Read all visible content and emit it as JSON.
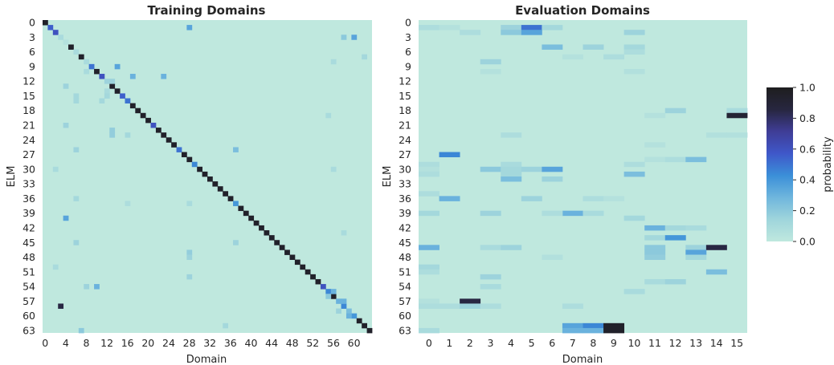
{
  "colorbar": {
    "label": "probability",
    "range": [
      0.0,
      1.0
    ],
    "tick_labels": [
      "0.0",
      "0.2",
      "0.4",
      "0.6",
      "0.8",
      "1.0"
    ],
    "colors": [
      "#bfe8de",
      "#9fd5dc",
      "#6fb6dd",
      "#3b8fd8",
      "#3f57c9",
      "#3f3d96",
      "#27263f",
      "#1e1e1e"
    ]
  },
  "chart_data": [
    {
      "type": "heatmap",
      "title": "Training Domains",
      "xlabel": "Domain",
      "ylabel": "ELM",
      "x_tick_labels": [
        "0",
        "4",
        "8",
        "12",
        "16",
        "20",
        "24",
        "28",
        "32",
        "36",
        "40",
        "44",
        "48",
        "52",
        "56",
        "60"
      ],
      "y_tick_labels": [
        "0",
        "3",
        "6",
        "9",
        "12",
        "15",
        "18",
        "21",
        "24",
        "27",
        "30",
        "33",
        "36",
        "39",
        "42",
        "45",
        "48",
        "51",
        "54",
        "57",
        "60",
        "63"
      ],
      "n_rows": 64,
      "n_cols": 64,
      "diagonal_value": 0.95,
      "diagonal_exceptions": [
        {
          "row": 1,
          "value": 0.55
        },
        {
          "row": 2,
          "value": 0.6
        },
        {
          "row": 9,
          "value": 0.5
        },
        {
          "row": 11,
          "value": 0.6
        },
        {
          "row": 15,
          "value": 0.55
        },
        {
          "row": 16,
          "value": 0.5
        },
        {
          "row": 21,
          "value": 0.6
        },
        {
          "row": 26,
          "value": 0.5
        },
        {
          "row": 29,
          "value": 0.45
        },
        {
          "row": 37,
          "value": 0.4
        },
        {
          "row": 54,
          "value": 0.6
        },
        {
          "row": 55,
          "value": 0.45
        },
        {
          "row": 58,
          "value": 0.45
        },
        {
          "row": 60,
          "value": 0.4
        }
      ],
      "off_diagonal": [
        {
          "row": 1,
          "col": 28,
          "value": 0.35
        },
        {
          "row": 3,
          "col": 3,
          "value": 0.1
        },
        {
          "row": 3,
          "col": 58,
          "value": 0.2
        },
        {
          "row": 3,
          "col": 60,
          "value": 0.35
        },
        {
          "row": 4,
          "col": 4,
          "value": 0.05
        },
        {
          "row": 6,
          "col": 6,
          "value": 0.1
        },
        {
          "row": 7,
          "col": 62,
          "value": 0.12
        },
        {
          "row": 8,
          "col": 8,
          "value": 0.1
        },
        {
          "row": 8,
          "col": 56,
          "value": 0.1
        },
        {
          "row": 9,
          "col": 14,
          "value": 0.35
        },
        {
          "row": 10,
          "col": 8,
          "value": 0.1
        },
        {
          "row": 11,
          "col": 17,
          "value": 0.3
        },
        {
          "row": 11,
          "col": 23,
          "value": 0.3
        },
        {
          "row": 12,
          "col": 12,
          "value": 0.15
        },
        {
          "row": 12,
          "col": 13,
          "value": 0.15
        },
        {
          "row": 13,
          "col": 4,
          "value": 0.15
        },
        {
          "row": 14,
          "col": 12,
          "value": 0.1
        },
        {
          "row": 15,
          "col": 6,
          "value": 0.12
        },
        {
          "row": 15,
          "col": 12,
          "value": 0.12
        },
        {
          "row": 16,
          "col": 6,
          "value": 0.12
        },
        {
          "row": 16,
          "col": 11,
          "value": 0.12
        },
        {
          "row": 19,
          "col": 55,
          "value": 0.1
        },
        {
          "row": 21,
          "col": 4,
          "value": 0.15
        },
        {
          "row": 22,
          "col": 13,
          "value": 0.18
        },
        {
          "row": 23,
          "col": 13,
          "value": 0.18
        },
        {
          "row": 23,
          "col": 16,
          "value": 0.12
        },
        {
          "row": 26,
          "col": 6,
          "value": 0.15
        },
        {
          "row": 26,
          "col": 37,
          "value": 0.25
        },
        {
          "row": 30,
          "col": 2,
          "value": 0.1
        },
        {
          "row": 30,
          "col": 56,
          "value": 0.1
        },
        {
          "row": 36,
          "col": 6,
          "value": 0.12
        },
        {
          "row": 37,
          "col": 16,
          "value": 0.08
        },
        {
          "row": 37,
          "col": 28,
          "value": 0.1
        },
        {
          "row": 40,
          "col": 4,
          "value": 0.35
        },
        {
          "row": 43,
          "col": 58,
          "value": 0.1
        },
        {
          "row": 45,
          "col": 6,
          "value": 0.15
        },
        {
          "row": 45,
          "col": 37,
          "value": 0.15
        },
        {
          "row": 47,
          "col": 28,
          "value": 0.18
        },
        {
          "row": 48,
          "col": 28,
          "value": 0.15
        },
        {
          "row": 50,
          "col": 2,
          "value": 0.1
        },
        {
          "row": 52,
          "col": 28,
          "value": 0.15
        },
        {
          "row": 54,
          "col": 8,
          "value": 0.15
        },
        {
          "row": 54,
          "col": 10,
          "value": 0.3
        },
        {
          "row": 55,
          "col": 56,
          "value": 0.3
        },
        {
          "row": 56,
          "col": 55,
          "value": 0.2
        },
        {
          "row": 57,
          "col": 57,
          "value": 0.3
        },
        {
          "row": 57,
          "col": 58,
          "value": 0.3
        },
        {
          "row": 58,
          "col": 3,
          "value": 0.85
        },
        {
          "row": 59,
          "col": 57,
          "value": 0.15
        },
        {
          "row": 59,
          "col": 59,
          "value": 0.25
        },
        {
          "row": 60,
          "col": 59,
          "value": 0.3
        },
        {
          "row": 62,
          "col": 35,
          "value": 0.12
        },
        {
          "row": 63,
          "col": 7,
          "value": 0.2
        }
      ]
    },
    {
      "type": "heatmap",
      "title": "Evaluation Domains",
      "xlabel": "Domain",
      "ylabel": "ELM",
      "x_tick_labels": [
        "0",
        "1",
        "2",
        "3",
        "4",
        "5",
        "6",
        "7",
        "8",
        "9",
        "10",
        "11",
        "12",
        "13",
        "14",
        "15"
      ],
      "y_tick_labels": [
        "0",
        "3",
        "6",
        "9",
        "12",
        "15",
        "18",
        "21",
        "24",
        "27",
        "30",
        "33",
        "36",
        "39",
        "42",
        "45",
        "48",
        "51",
        "54",
        "57",
        "60",
        "63"
      ],
      "n_rows": 64,
      "n_cols": 16,
      "cells": [
        {
          "row": 1,
          "col": 0,
          "value": 0.08
        },
        {
          "row": 1,
          "col": 1,
          "value": 0.05
        },
        {
          "row": 1,
          "col": 4,
          "value": 0.15
        },
        {
          "row": 1,
          "col": 5,
          "value": 0.5
        },
        {
          "row": 1,
          "col": 6,
          "value": 0.12
        },
        {
          "row": 2,
          "col": 4,
          "value": 0.2
        },
        {
          "row": 2,
          "col": 5,
          "value": 0.35
        },
        {
          "row": 2,
          "col": 10,
          "value": 0.15
        },
        {
          "row": 2,
          "col": 2,
          "value": 0.08
        },
        {
          "row": 5,
          "col": 6,
          "value": 0.25
        },
        {
          "row": 5,
          "col": 8,
          "value": 0.15
        },
        {
          "row": 5,
          "col": 10,
          "value": 0.12
        },
        {
          "row": 6,
          "col": 10,
          "value": 0.08
        },
        {
          "row": 7,
          "col": 7,
          "value": 0.05
        },
        {
          "row": 7,
          "col": 9,
          "value": 0.08
        },
        {
          "row": 8,
          "col": 3,
          "value": 0.15
        },
        {
          "row": 10,
          "col": 3,
          "value": 0.05
        },
        {
          "row": 10,
          "col": 10,
          "value": 0.06
        },
        {
          "row": 18,
          "col": 12,
          "value": 0.15
        },
        {
          "row": 18,
          "col": 15,
          "value": 0.1
        },
        {
          "row": 19,
          "col": 15,
          "value": 0.9
        },
        {
          "row": 19,
          "col": 11,
          "value": 0.05
        },
        {
          "row": 23,
          "col": 4,
          "value": 0.08
        },
        {
          "row": 23,
          "col": 14,
          "value": 0.06
        },
        {
          "row": 23,
          "col": 15,
          "value": 0.06
        },
        {
          "row": 25,
          "col": 11,
          "value": 0.05
        },
        {
          "row": 27,
          "col": 1,
          "value": 0.45
        },
        {
          "row": 28,
          "col": 11,
          "value": 0.05
        },
        {
          "row": 28,
          "col": 12,
          "value": 0.08
        },
        {
          "row": 28,
          "col": 13,
          "value": 0.25
        },
        {
          "row": 29,
          "col": 0,
          "value": 0.08
        },
        {
          "row": 29,
          "col": 4,
          "value": 0.1
        },
        {
          "row": 29,
          "col": 10,
          "value": 0.08
        },
        {
          "row": 30,
          "col": 0,
          "value": 0.05
        },
        {
          "row": 30,
          "col": 3,
          "value": 0.2
        },
        {
          "row": 30,
          "col": 4,
          "value": 0.12
        },
        {
          "row": 30,
          "col": 5,
          "value": 0.15
        },
        {
          "row": 30,
          "col": 6,
          "value": 0.35
        },
        {
          "row": 31,
          "col": 0,
          "value": 0.08
        },
        {
          "row": 31,
          "col": 4,
          "value": 0.12
        },
        {
          "row": 31,
          "col": 10,
          "value": 0.25
        },
        {
          "row": 32,
          "col": 4,
          "value": 0.25
        },
        {
          "row": 32,
          "col": 6,
          "value": 0.15
        },
        {
          "row": 35,
          "col": 0,
          "value": 0.08
        },
        {
          "row": 36,
          "col": 1,
          "value": 0.3
        },
        {
          "row": 36,
          "col": 5,
          "value": 0.15
        },
        {
          "row": 36,
          "col": 8,
          "value": 0.08
        },
        {
          "row": 36,
          "col": 9,
          "value": 0.05
        },
        {
          "row": 39,
          "col": 0,
          "value": 0.12
        },
        {
          "row": 39,
          "col": 3,
          "value": 0.15
        },
        {
          "row": 39,
          "col": 7,
          "value": 0.3
        },
        {
          "row": 39,
          "col": 6,
          "value": 0.08
        },
        {
          "row": 39,
          "col": 8,
          "value": 0.1
        },
        {
          "row": 40,
          "col": 10,
          "value": 0.12
        },
        {
          "row": 42,
          "col": 11,
          "value": 0.3
        },
        {
          "row": 42,
          "col": 12,
          "value": 0.12
        },
        {
          "row": 42,
          "col": 13,
          "value": 0.1
        },
        {
          "row": 44,
          "col": 11,
          "value": 0.12
        },
        {
          "row": 44,
          "col": 12,
          "value": 0.4
        },
        {
          "row": 46,
          "col": 0,
          "value": 0.3
        },
        {
          "row": 46,
          "col": 3,
          "value": 0.1
        },
        {
          "row": 46,
          "col": 4,
          "value": 0.15
        },
        {
          "row": 46,
          "col": 11,
          "value": 0.2
        },
        {
          "row": 46,
          "col": 13,
          "value": 0.15
        },
        {
          "row": 46,
          "col": 14,
          "value": 0.85
        },
        {
          "row": 47,
          "col": 11,
          "value": 0.2
        },
        {
          "row": 47,
          "col": 13,
          "value": 0.35
        },
        {
          "row": 48,
          "col": 11,
          "value": 0.18
        },
        {
          "row": 48,
          "col": 6,
          "value": 0.06
        },
        {
          "row": 48,
          "col": 13,
          "value": 0.12
        },
        {
          "row": 50,
          "col": 0,
          "value": 0.12
        },
        {
          "row": 51,
          "col": 14,
          "value": 0.25
        },
        {
          "row": 51,
          "col": 0,
          "value": 0.08
        },
        {
          "row": 52,
          "col": 3,
          "value": 0.15
        },
        {
          "row": 53,
          "col": 11,
          "value": 0.1
        },
        {
          "row": 53,
          "col": 12,
          "value": 0.15
        },
        {
          "row": 54,
          "col": 3,
          "value": 0.1
        },
        {
          "row": 55,
          "col": 10,
          "value": 0.1
        },
        {
          "row": 57,
          "col": 2,
          "value": 0.85
        },
        {
          "row": 57,
          "col": 0,
          "value": 0.05
        },
        {
          "row": 58,
          "col": 0,
          "value": 0.08
        },
        {
          "row": 58,
          "col": 1,
          "value": 0.08
        },
        {
          "row": 58,
          "col": 2,
          "value": 0.15
        },
        {
          "row": 58,
          "col": 3,
          "value": 0.08
        },
        {
          "row": 58,
          "col": 7,
          "value": 0.08
        },
        {
          "row": 62,
          "col": 7,
          "value": 0.35
        },
        {
          "row": 62,
          "col": 8,
          "value": 0.45
        },
        {
          "row": 62,
          "col": 9,
          "value": 0.95
        },
        {
          "row": 63,
          "col": 0,
          "value": 0.1
        },
        {
          "row": 63,
          "col": 7,
          "value": 0.3
        },
        {
          "row": 63,
          "col": 8,
          "value": 0.3
        },
        {
          "row": 63,
          "col": 9,
          "value": 0.95
        }
      ]
    }
  ]
}
